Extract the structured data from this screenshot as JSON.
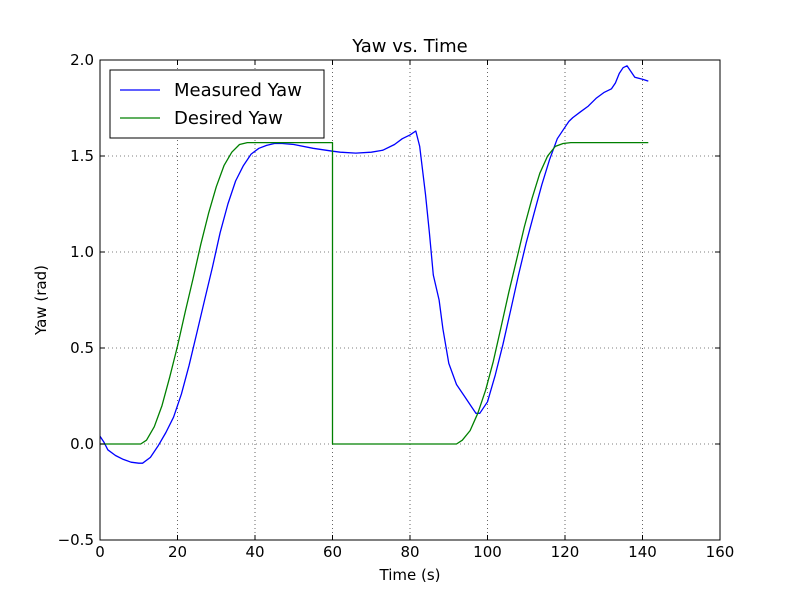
{
  "chart_data": {
    "type": "line",
    "title": "Yaw vs. Time",
    "xlabel": "Time (s)",
    "ylabel": "Yaw (rad)",
    "xlim": [
      0,
      160
    ],
    "ylim": [
      -0.5,
      2.0
    ],
    "grid": true,
    "legend_position": "top-left",
    "x_ticks": [
      0,
      20,
      40,
      60,
      80,
      100,
      120,
      140,
      160
    ],
    "x_tick_labels": [
      "0",
      "20",
      "40",
      "60",
      "80",
      "100",
      "120",
      "140",
      "160"
    ],
    "y_ticks": [
      -0.5,
      0.0,
      0.5,
      1.0,
      1.5,
      2.0
    ],
    "y_tick_labels": [
      "−0.5",
      "0.0",
      "0.5",
      "1.0",
      "1.5",
      "2.0"
    ],
    "series": [
      {
        "name": "Measured Yaw",
        "color": "#0000ff",
        "x": [
          0,
          1,
          2,
          4,
          6,
          8,
          10,
          11,
          13,
          15,
          17,
          19,
          21,
          23,
          25,
          27,
          29,
          31,
          33,
          35,
          37,
          39,
          41,
          43,
          45,
          47,
          50,
          55,
          60,
          62,
          66,
          70,
          73,
          76,
          78,
          80,
          81.5,
          82.5,
          84,
          85,
          86,
          87.5,
          88.5,
          90,
          92,
          94,
          96,
          97,
          98,
          100,
          102,
          104,
          106,
          108,
          110,
          112,
          114,
          116,
          118,
          120,
          121,
          122,
          124,
          126,
          128,
          130,
          132,
          133,
          134,
          135,
          136,
          137,
          138,
          140,
          141.5
        ],
        "y": [
          0.04,
          0.01,
          -0.03,
          -0.06,
          -0.08,
          -0.095,
          -0.1,
          -0.1,
          -0.07,
          -0.01,
          0.06,
          0.14,
          0.26,
          0.41,
          0.58,
          0.75,
          0.92,
          1.1,
          1.25,
          1.37,
          1.45,
          1.51,
          1.54,
          1.555,
          1.565,
          1.565,
          1.56,
          1.54,
          1.525,
          1.52,
          1.515,
          1.52,
          1.53,
          1.56,
          1.59,
          1.61,
          1.63,
          1.55,
          1.3,
          1.1,
          0.88,
          0.75,
          0.6,
          0.42,
          0.31,
          0.25,
          0.19,
          0.16,
          0.16,
          0.22,
          0.36,
          0.52,
          0.7,
          0.88,
          1.05,
          1.2,
          1.35,
          1.48,
          1.59,
          1.65,
          1.68,
          1.7,
          1.73,
          1.76,
          1.8,
          1.83,
          1.85,
          1.88,
          1.93,
          1.96,
          1.97,
          1.94,
          1.91,
          1.9,
          1.89
        ]
      },
      {
        "name": "Desired Yaw",
        "color": "#008000",
        "x": [
          0,
          10.5,
          12,
          14,
          16,
          18,
          20,
          22,
          24,
          26,
          28,
          30,
          32,
          34,
          36,
          38,
          40,
          60,
          60,
          92,
          93.5,
          95.5,
          97.5,
          99.5,
          101.5,
          103.5,
          105.5,
          107.5,
          109.5,
          111.5,
          113.5,
          115.5,
          117.5,
          119.5,
          121.5,
          141.5
        ],
        "y": [
          0,
          0,
          0.02,
          0.09,
          0.2,
          0.35,
          0.51,
          0.69,
          0.86,
          1.04,
          1.2,
          1.34,
          1.45,
          1.52,
          1.56,
          1.57,
          1.57,
          1.57,
          0,
          0,
          0.02,
          0.07,
          0.16,
          0.28,
          0.43,
          0.61,
          0.79,
          0.96,
          1.13,
          1.28,
          1.41,
          1.5,
          1.55,
          1.565,
          1.57,
          1.57
        ]
      }
    ]
  }
}
